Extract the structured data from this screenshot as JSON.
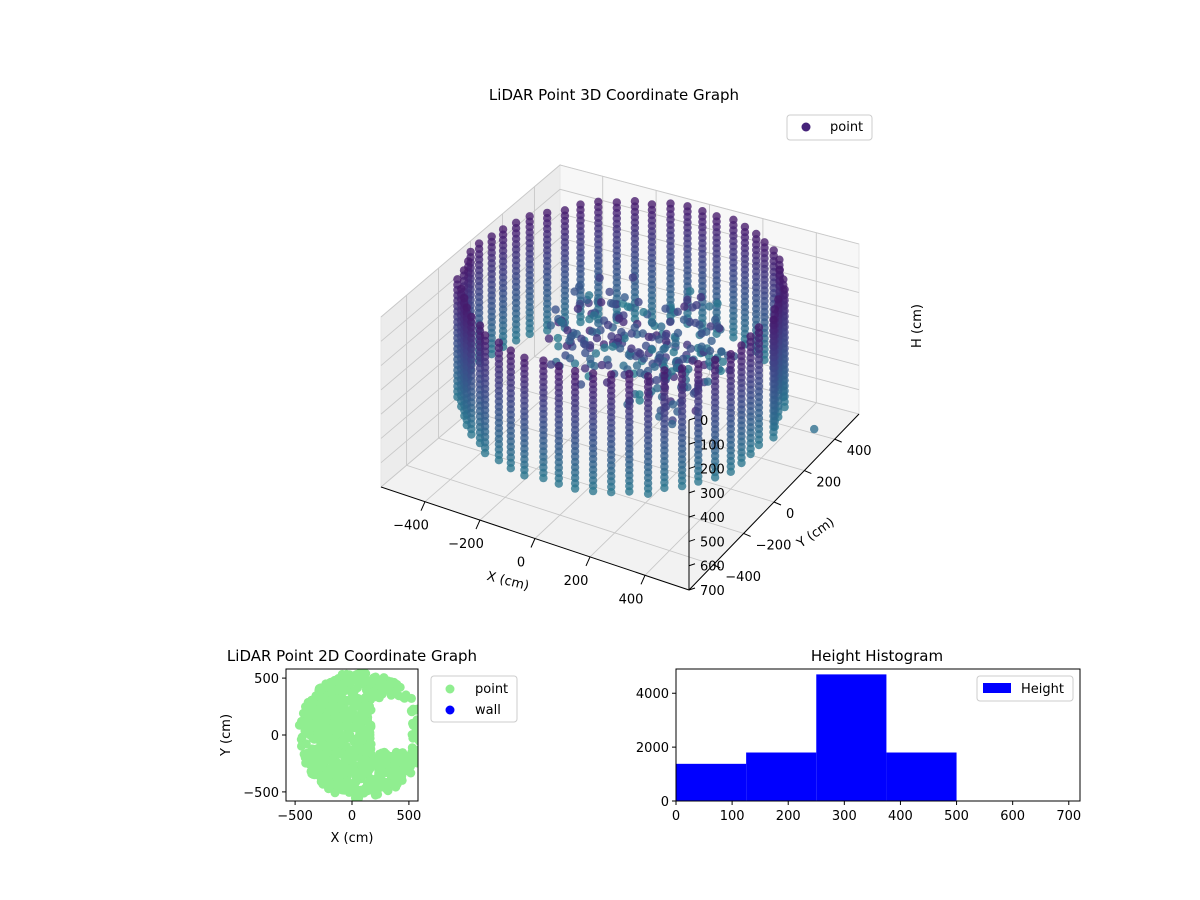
{
  "chart_data": [
    {
      "type": "scatter3d",
      "title": "LiDAR Point 3D Coordinate Graph",
      "xlabel": "X (cm)",
      "ylabel": "Y (cm)",
      "zlabel": "H (cm)",
      "x_ticks": [
        -400,
        -200,
        0,
        200,
        400
      ],
      "y_ticks": [
        -400,
        -200,
        0,
        200,
        400
      ],
      "z_ticks": [
        0,
        100,
        200,
        300,
        400,
        500,
        600,
        700
      ],
      "xlim": [
        -560,
        560
      ],
      "ylim": [
        -560,
        560
      ],
      "zlim": [
        0,
        700
      ],
      "z_inverted": true,
      "ring_radius": 520,
      "ring_height_range": [
        0,
        500
      ],
      "colormap": "viridis",
      "series": [
        {
          "name": "point",
          "color": "#46237a"
        }
      ],
      "legend": {
        "position": "upper right"
      }
    },
    {
      "type": "scatter",
      "title": "LiDAR Point 2D Coordinate Graph",
      "xlabel": "X (cm)",
      "ylabel": "Y (cm)",
      "x_ticks": [
        -500,
        0,
        500
      ],
      "y_ticks": [
        -500,
        0,
        500
      ],
      "xlim": [
        -580,
        580
      ],
      "ylim": [
        -580,
        580
      ],
      "series": [
        {
          "name": "point",
          "color": "#90ee90"
        },
        {
          "name": "wall",
          "color": "#0000ff"
        }
      ],
      "legend": {
        "position": "outside right"
      }
    },
    {
      "type": "bar",
      "title": "Height Histogram",
      "x_ticks": [
        0,
        100,
        200,
        300,
        400,
        500,
        600,
        700
      ],
      "y_ticks": [
        0,
        2000,
        4000
      ],
      "xlim": [
        0,
        720
      ],
      "ylim": [
        0,
        4900
      ],
      "bins": [
        [
          0,
          125
        ],
        [
          125,
          250
        ],
        [
          250,
          375
        ],
        [
          375,
          500
        ],
        [
          500,
          625
        ],
        [
          625,
          720
        ]
      ],
      "values": [
        1380,
        1800,
        4700,
        1800,
        0,
        0
      ],
      "series": [
        {
          "name": "Height",
          "color": "#0000ff"
        }
      ],
      "legend": {
        "position": "upper right"
      }
    }
  ]
}
